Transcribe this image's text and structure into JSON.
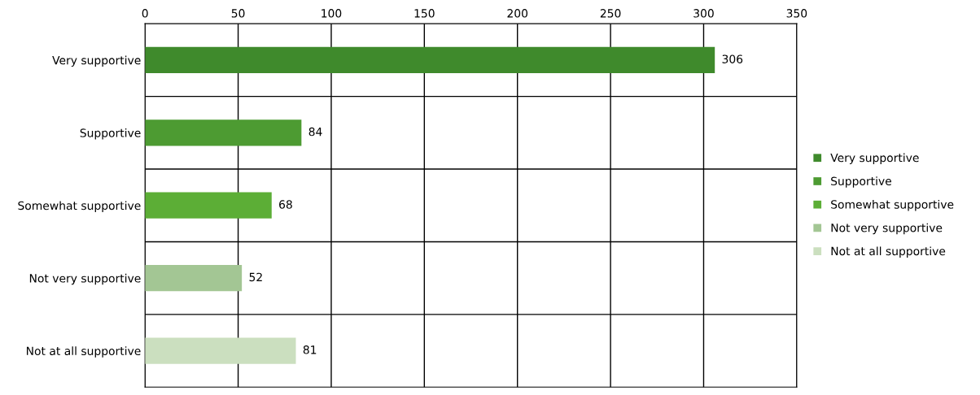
{
  "chart_data": {
    "type": "bar",
    "orientation": "horizontal",
    "categories": [
      "Very supportive",
      "Supportive",
      "Somewhat supportive",
      "Not very supportive",
      "Not at all supportive"
    ],
    "series": [
      {
        "name": "Very supportive",
        "color": "#3f8a2c",
        "values": [
          306,
          null,
          null,
          null,
          null
        ]
      },
      {
        "name": "Supportive",
        "color": "#4d9b32",
        "values": [
          null,
          84,
          null,
          null,
          null
        ]
      },
      {
        "name": "Somewhat supportive",
        "color": "#5cae36",
        "values": [
          null,
          null,
          68,
          null,
          null
        ]
      },
      {
        "name": "Not very supportive",
        "color": "#a3c694",
        "values": [
          null,
          null,
          null,
          52,
          null
        ]
      },
      {
        "name": "Not at all supportive",
        "color": "#cbdfbf",
        "values": [
          null,
          null,
          null,
          null,
          81
        ]
      }
    ],
    "xlim": [
      0,
      350
    ],
    "xticks": [
      0,
      50,
      100,
      150,
      200,
      250,
      300,
      350
    ],
    "grid": true,
    "data_labels": true,
    "legend": "right"
  }
}
